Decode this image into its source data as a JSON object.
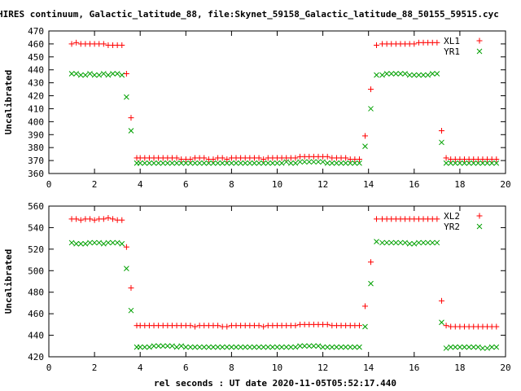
{
  "title": "HIRES continuum, Galactic_latitude_88, file:Skynet_59158_Galactic_latitude_88_50155_59515.cyc",
  "xlabel_bottom": "rel seconds : UT date 2020-11-05T05:52:17.440",
  "colors": {
    "red": "#ff0000",
    "green": "#00a000",
    "frame": "#000000"
  },
  "chart_data": [
    {
      "type": "scatter",
      "ylabel": "Uncalibrated",
      "xlim": [
        0,
        20
      ],
      "ylim": [
        360,
        470
      ],
      "x_ticks": [
        0,
        2,
        4,
        6,
        8,
        10,
        12,
        14,
        16,
        18,
        20
      ],
      "y_ticks": [
        360,
        370,
        380,
        390,
        400,
        410,
        420,
        430,
        440,
        450,
        460,
        470
      ],
      "legend_position": "top-right",
      "series": [
        {
          "name": "XL1",
          "color": "#ff0000",
          "marker": "plus",
          "x": [
            1.0,
            1.2,
            1.4,
            1.6,
            1.8,
            2.0,
            2.2,
            2.4,
            2.6,
            2.8,
            3.0,
            3.2,
            3.4,
            3.6,
            3.85,
            4.0,
            4.2,
            4.4,
            4.6,
            4.8,
            5.0,
            5.2,
            5.4,
            5.6,
            5.8,
            6.0,
            6.2,
            6.4,
            6.6,
            6.8,
            7.0,
            7.2,
            7.4,
            7.6,
            7.8,
            8.0,
            8.2,
            8.4,
            8.6,
            8.8,
            9.0,
            9.2,
            9.4,
            9.6,
            9.8,
            10.0,
            10.2,
            10.4,
            10.6,
            10.8,
            11.0,
            11.2,
            11.4,
            11.6,
            11.8,
            12.0,
            12.2,
            12.4,
            12.6,
            12.8,
            13.0,
            13.2,
            13.4,
            13.6,
            13.85,
            14.1,
            14.35,
            14.6,
            14.8,
            15.0,
            15.2,
            15.4,
            15.6,
            15.8,
            16.0,
            16.2,
            16.4,
            16.6,
            16.8,
            17.0,
            17.2,
            17.4,
            17.6,
            17.8,
            18.0,
            18.2,
            18.4,
            18.6,
            18.8,
            19.0,
            19.2,
            19.4,
            19.6
          ],
          "y": [
            460,
            461,
            460,
            460,
            460,
            460,
            460,
            460,
            459,
            459,
            459,
            459,
            437,
            403,
            372,
            372,
            372,
            372,
            372,
            372,
            372,
            372,
            372,
            372,
            371,
            371,
            371,
            372,
            372,
            372,
            371,
            371,
            372,
            372,
            371,
            372,
            372,
            372,
            372,
            372,
            372,
            372,
            371,
            372,
            372,
            372,
            372,
            372,
            372,
            372,
            373,
            373,
            373,
            373,
            373,
            373,
            373,
            372,
            372,
            372,
            372,
            371,
            371,
            371,
            389,
            425,
            459,
            460,
            460,
            460,
            460,
            460,
            460,
            460,
            460,
            461,
            461,
            461,
            461,
            461,
            393,
            372,
            371,
            371,
            371,
            371,
            371,
            371,
            371,
            371,
            371,
            371,
            371
          ]
        },
        {
          "name": "YR1",
          "color": "#00a000",
          "marker": "cross",
          "x": [
            1.0,
            1.2,
            1.4,
            1.6,
            1.8,
            2.0,
            2.2,
            2.4,
            2.6,
            2.8,
            3.0,
            3.2,
            3.4,
            3.6,
            3.85,
            4.0,
            4.2,
            4.4,
            4.6,
            4.8,
            5.0,
            5.2,
            5.4,
            5.6,
            5.8,
            6.0,
            6.2,
            6.4,
            6.6,
            6.8,
            7.0,
            7.2,
            7.4,
            7.6,
            7.8,
            8.0,
            8.2,
            8.4,
            8.6,
            8.8,
            9.0,
            9.2,
            9.4,
            9.6,
            9.8,
            10.0,
            10.2,
            10.4,
            10.6,
            10.8,
            11.0,
            11.2,
            11.4,
            11.6,
            11.8,
            12.0,
            12.2,
            12.4,
            12.6,
            12.8,
            13.0,
            13.2,
            13.4,
            13.6,
            13.85,
            14.1,
            14.35,
            14.6,
            14.8,
            15.0,
            15.2,
            15.4,
            15.6,
            15.8,
            16.0,
            16.2,
            16.4,
            16.6,
            16.8,
            17.0,
            17.2,
            17.4,
            17.6,
            17.8,
            18.0,
            18.2,
            18.4,
            18.6,
            18.8,
            19.0,
            19.2,
            19.4,
            19.6
          ],
          "y": [
            437,
            437,
            436,
            436,
            437,
            436,
            436,
            437,
            436,
            437,
            437,
            436,
            419,
            393,
            368,
            368,
            368,
            368,
            368,
            368,
            368,
            368,
            368,
            368,
            368,
            368,
            368,
            368,
            368,
            368,
            368,
            368,
            368,
            368,
            368,
            368,
            368,
            368,
            368,
            368,
            368,
            368,
            368,
            368,
            368,
            368,
            368,
            369,
            368,
            368,
            369,
            369,
            369,
            369,
            369,
            369,
            368,
            368,
            368,
            368,
            368,
            368,
            368,
            368,
            381,
            410,
            436,
            436,
            437,
            437,
            437,
            437,
            437,
            436,
            436,
            436,
            436,
            436,
            437,
            437,
            384,
            368,
            368,
            368,
            368,
            368,
            368,
            368,
            368,
            368,
            368,
            368,
            368
          ]
        }
      ]
    },
    {
      "type": "scatter",
      "ylabel": "Uncalibrated",
      "xlabel": "rel seconds : UT date 2020-11-05T05:52:17.440",
      "xlim": [
        0,
        20
      ],
      "ylim": [
        420,
        560
      ],
      "x_ticks": [
        0,
        2,
        4,
        6,
        8,
        10,
        12,
        14,
        16,
        18,
        20
      ],
      "y_ticks": [
        420,
        440,
        460,
        480,
        500,
        520,
        540,
        560
      ],
      "legend_position": "top-right",
      "series": [
        {
          "name": "XL2",
          "color": "#ff0000",
          "marker": "plus",
          "x": [
            1.0,
            1.2,
            1.4,
            1.6,
            1.8,
            2.0,
            2.2,
            2.4,
            2.6,
            2.8,
            3.0,
            3.2,
            3.4,
            3.6,
            3.85,
            4.0,
            4.2,
            4.4,
            4.6,
            4.8,
            5.0,
            5.2,
            5.4,
            5.6,
            5.8,
            6.0,
            6.2,
            6.4,
            6.6,
            6.8,
            7.0,
            7.2,
            7.4,
            7.6,
            7.8,
            8.0,
            8.2,
            8.4,
            8.6,
            8.8,
            9.0,
            9.2,
            9.4,
            9.6,
            9.8,
            10.0,
            10.2,
            10.4,
            10.6,
            10.8,
            11.0,
            11.2,
            11.4,
            11.6,
            11.8,
            12.0,
            12.2,
            12.4,
            12.6,
            12.8,
            13.0,
            13.2,
            13.4,
            13.6,
            13.85,
            14.1,
            14.35,
            14.6,
            14.8,
            15.0,
            15.2,
            15.4,
            15.6,
            15.8,
            16.0,
            16.2,
            16.4,
            16.6,
            16.8,
            17.0,
            17.2,
            17.4,
            17.6,
            17.8,
            18.0,
            18.2,
            18.4,
            18.6,
            18.8,
            19.0,
            19.2,
            19.4,
            19.6
          ],
          "y": [
            548,
            548,
            547,
            548,
            548,
            547,
            548,
            548,
            549,
            548,
            547,
            547,
            522,
            484,
            449,
            449,
            449,
            449,
            449,
            449,
            449,
            449,
            449,
            449,
            449,
            449,
            449,
            448,
            449,
            449,
            449,
            449,
            449,
            448,
            448,
            449,
            449,
            449,
            449,
            449,
            449,
            449,
            448,
            449,
            449,
            449,
            449,
            449,
            449,
            449,
            450,
            450,
            450,
            450,
            450,
            450,
            450,
            449,
            449,
            449,
            449,
            449,
            449,
            449,
            467,
            508,
            548,
            548,
            548,
            548,
            548,
            548,
            548,
            548,
            548,
            548,
            548,
            548,
            548,
            548,
            472,
            449,
            448,
            448,
            448,
            448,
            448,
            448,
            448,
            448,
            448,
            448,
            448
          ]
        },
        {
          "name": "YR2",
          "color": "#00a000",
          "marker": "cross",
          "x": [
            1.0,
            1.2,
            1.4,
            1.6,
            1.8,
            2.0,
            2.2,
            2.4,
            2.6,
            2.8,
            3.0,
            3.2,
            3.4,
            3.6,
            3.85,
            4.0,
            4.2,
            4.4,
            4.6,
            4.8,
            5.0,
            5.2,
            5.4,
            5.6,
            5.8,
            6.0,
            6.2,
            6.4,
            6.6,
            6.8,
            7.0,
            7.2,
            7.4,
            7.6,
            7.8,
            8.0,
            8.2,
            8.4,
            8.6,
            8.8,
            9.0,
            9.2,
            9.4,
            9.6,
            9.8,
            10.0,
            10.2,
            10.4,
            10.6,
            10.8,
            11.0,
            11.2,
            11.4,
            11.6,
            11.8,
            12.0,
            12.2,
            12.4,
            12.6,
            12.8,
            13.0,
            13.2,
            13.4,
            13.6,
            13.85,
            14.1,
            14.35,
            14.6,
            14.8,
            15.0,
            15.2,
            15.4,
            15.6,
            15.8,
            16.0,
            16.2,
            16.4,
            16.6,
            16.8,
            17.0,
            17.2,
            17.4,
            17.6,
            17.8,
            18.0,
            18.2,
            18.4,
            18.6,
            18.8,
            19.0,
            19.2,
            19.4,
            19.6
          ],
          "y": [
            526,
            525,
            525,
            525,
            526,
            526,
            526,
            525,
            526,
            526,
            526,
            525,
            502,
            463,
            429,
            429,
            429,
            429,
            430,
            430,
            430,
            430,
            430,
            429,
            430,
            429,
            429,
            429,
            429,
            429,
            429,
            429,
            429,
            429,
            429,
            429,
            429,
            429,
            429,
            429,
            429,
            429,
            429,
            429,
            429,
            429,
            429,
            429,
            429,
            429,
            430,
            430,
            430,
            430,
            430,
            429,
            429,
            429,
            429,
            429,
            429,
            429,
            429,
            429,
            448,
            488,
            527,
            526,
            526,
            526,
            526,
            526,
            526,
            525,
            525,
            526,
            526,
            526,
            526,
            526,
            452,
            428,
            429,
            429,
            429,
            429,
            429,
            429,
            429,
            428,
            428,
            429,
            429
          ]
        }
      ]
    }
  ]
}
